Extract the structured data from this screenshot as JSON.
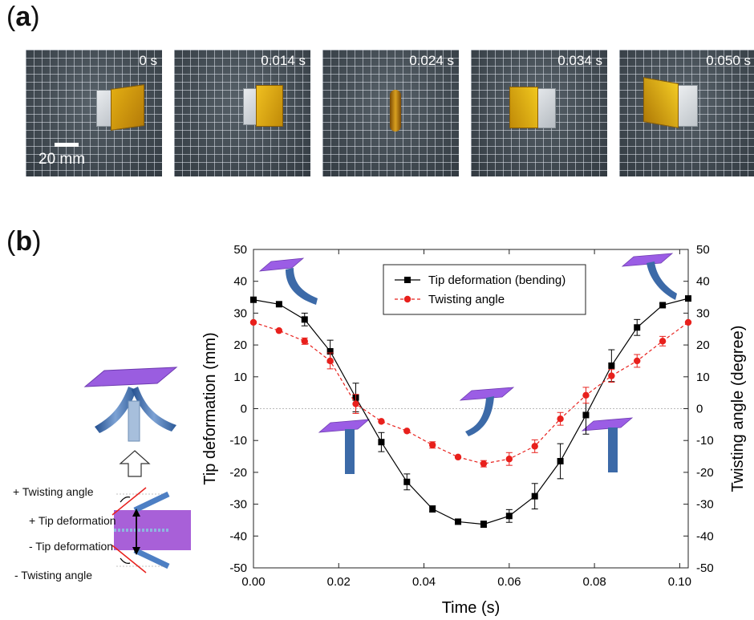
{
  "panel_a": {
    "label": "a",
    "frames": [
      {
        "time": "0 s"
      },
      {
        "time": "0.014 s"
      },
      {
        "time": "0.024 s"
      },
      {
        "time": "0.034 s"
      },
      {
        "time": "0.050 s"
      }
    ],
    "scale_label": "20 mm"
  },
  "panel_b": {
    "label": "b",
    "schematic_labels": {
      "plus_twist": "+ Twisting angle",
      "plus_tip": "+ Tip deformation",
      "minus_tip": "- Tip deformation",
      "minus_twist": "- Twisting angle"
    }
  },
  "colors": {
    "bending_series": "#000000",
    "twisting_series": "#e8201c",
    "plate": "#9b5de5",
    "beam": "#3c6aa8"
  },
  "chart_data": {
    "type": "line",
    "title": "",
    "xlabel": "Time (s)",
    "ylabel": "Tip deformation (mm)",
    "ylabel_right": "Twisting angle (degree)",
    "xlim": [
      0,
      0.102
    ],
    "ylim": [
      -50,
      50
    ],
    "ylim_right": [
      -50,
      50
    ],
    "x_ticks": [
      "0.00",
      "0.02",
      "0.04",
      "0.06",
      "0.08",
      "0.10"
    ],
    "y_ticks": [
      "50",
      "40",
      "30",
      "20",
      "10",
      "0",
      "-10",
      "-20",
      "-30",
      "-40",
      "-50"
    ],
    "y_ticks_right": [
      "50",
      "40",
      "30",
      "20",
      "10",
      "0",
      "-10",
      "-20",
      "-30",
      "-40",
      "-50"
    ],
    "legend_position": "top-center",
    "zero_reference_line": true,
    "x": [
      0,
      0.006,
      0.012,
      0.018,
      0.024,
      0.03,
      0.036,
      0.042,
      0.048,
      0.054,
      0.06,
      0.066,
      0.072,
      0.078,
      0.084,
      0.09,
      0.096,
      0.102
    ],
    "series": [
      {
        "name": "Tip deformation (bending)",
        "axis": "left",
        "marker": "square",
        "line_style": "solid",
        "values": [
          34.2,
          32.8,
          28,
          18,
          3.5,
          -10.5,
          -23,
          -31.5,
          -35.5,
          -36.3,
          -33.7,
          -27.5,
          -16.5,
          -2,
          13.5,
          25.5,
          32.5,
          34.6
        ],
        "errors": [
          0,
          0,
          2,
          3.5,
          4.5,
          3,
          2.5,
          1,
          0,
          1,
          2,
          4,
          5.5,
          6,
          5,
          2.5,
          0.5,
          0
        ]
      },
      {
        "name": "Twisting angle",
        "axis": "right",
        "marker": "circle",
        "line_style": "dashed",
        "values": [
          27.1,
          24.5,
          21.2,
          15,
          1.5,
          -4,
          -7,
          -11.4,
          -15.2,
          -17.3,
          -15.8,
          -11.8,
          -3.2,
          4.2,
          10.3,
          15,
          21.2,
          27.1
        ],
        "errors": [
          0,
          0,
          1,
          2.5,
          3,
          0,
          0,
          1,
          0,
          1,
          2,
          2,
          2,
          2.5,
          2,
          2,
          1.5,
          0
        ]
      }
    ]
  }
}
